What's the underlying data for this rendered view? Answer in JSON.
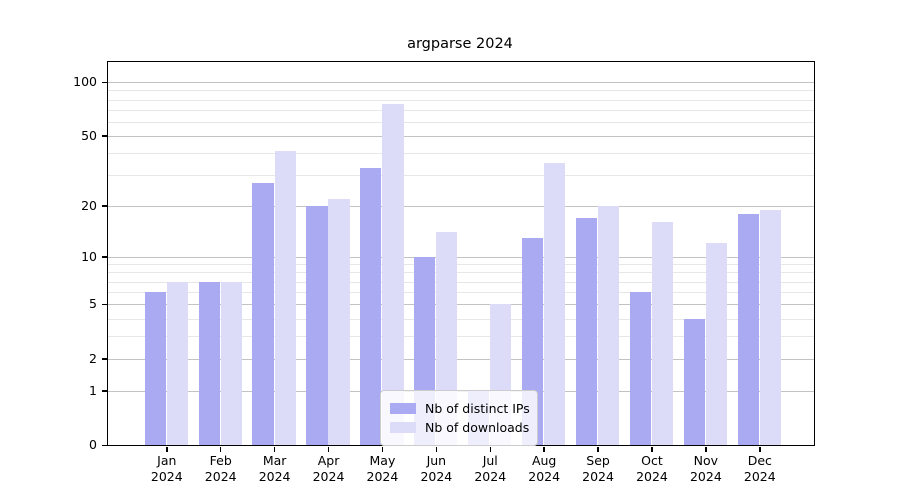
{
  "title": "argparse 2024",
  "chart_data": {
    "type": "bar",
    "title": "argparse 2024",
    "categories": [
      "Jan",
      "Feb",
      "Mar",
      "Apr",
      "May",
      "Jun",
      "Jul",
      "Aug",
      "Sep",
      "Oct",
      "Nov",
      "Dec"
    ],
    "year": "2024",
    "series": [
      {
        "name": "Nb of distinct IPs",
        "color": "#aaaaf2",
        "values": [
          6,
          7,
          27,
          20,
          33,
          10,
          1,
          13,
          17,
          6,
          4,
          18
        ]
      },
      {
        "name": "Nb of downloads",
        "color": "#dcdcf8",
        "values": [
          7,
          7,
          41,
          22,
          76,
          14,
          5,
          35,
          20,
          16,
          12,
          19
        ]
      }
    ],
    "yscale": "log1p",
    "yticks": [
      0,
      1,
      2,
      5,
      10,
      20,
      50,
      100
    ],
    "minor_yticks": [
      3,
      4,
      6,
      7,
      8,
      9,
      30,
      40,
      60,
      70,
      80,
      90
    ],
    "ylim": [
      0,
      128
    ],
    "grid": true,
    "legend_position": "lower center",
    "colors": {
      "spine": "#000000",
      "major_grid": "#c3c3c3",
      "minor_grid": "#e7e7e7",
      "background": "#ffffff"
    }
  }
}
